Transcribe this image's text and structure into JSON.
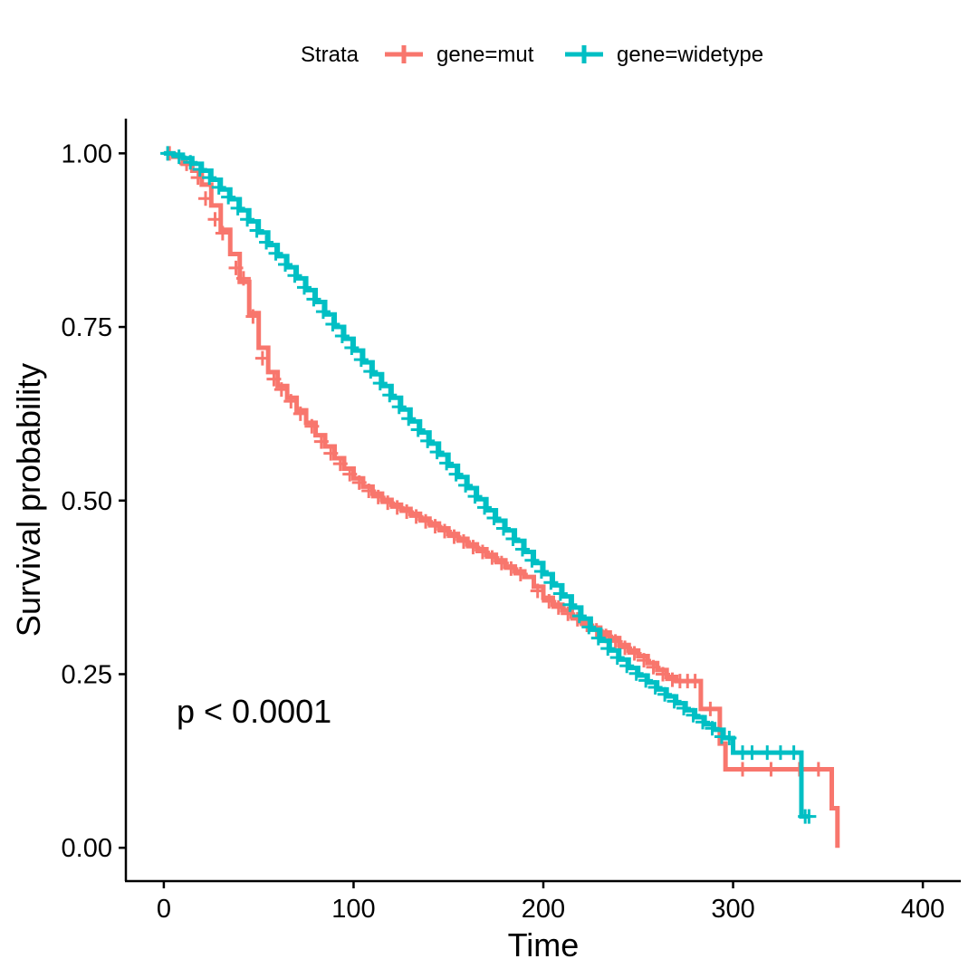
{
  "chart_data": {
    "type": "line",
    "xlabel": "Time",
    "ylabel": "Survival probability",
    "xlim": [
      -20,
      420
    ],
    "ylim": [
      -0.048,
      1.05
    ],
    "x_ticks": [
      0,
      100,
      200,
      300,
      400
    ],
    "x_tick_labels": [
      "0",
      "100",
      "200",
      "300",
      "400"
    ],
    "y_ticks": [
      0,
      0.25,
      0.5,
      0.75,
      1.0
    ],
    "y_tick_labels": [
      "0.00",
      "0.25",
      "0.50",
      "0.75",
      "1.00"
    ],
    "grid": false,
    "legend": {
      "position": "top",
      "title": "Strata",
      "entries": [
        "gene=mut",
        "gene=widetype"
      ]
    },
    "annotation": "p < 0.0001",
    "series": [
      {
        "name": "gene=mut",
        "color": "#F8766D",
        "points": [
          [
            0,
            1.0
          ],
          [
            5,
            0.995
          ],
          [
            10,
            0.985
          ],
          [
            15,
            0.975
          ],
          [
            20,
            0.955
          ],
          [
            25,
            0.925
          ],
          [
            30,
            0.89
          ],
          [
            35,
            0.855
          ],
          [
            40,
            0.815
          ],
          [
            45,
            0.77
          ],
          [
            50,
            0.72
          ],
          [
            55,
            0.685
          ],
          [
            60,
            0.665
          ],
          [
            65,
            0.648
          ],
          [
            70,
            0.63
          ],
          [
            75,
            0.612
          ],
          [
            80,
            0.594
          ],
          [
            85,
            0.578
          ],
          [
            90,
            0.561
          ],
          [
            95,
            0.546
          ],
          [
            100,
            0.532
          ],
          [
            105,
            0.52
          ],
          [
            110,
            0.51
          ],
          [
            115,
            0.501
          ],
          [
            120,
            0.494
          ],
          [
            125,
            0.488
          ],
          [
            130,
            0.481
          ],
          [
            135,
            0.474
          ],
          [
            140,
            0.467
          ],
          [
            145,
            0.46
          ],
          [
            150,
            0.452
          ],
          [
            155,
            0.445
          ],
          [
            160,
            0.437
          ],
          [
            165,
            0.43
          ],
          [
            170,
            0.422
          ],
          [
            175,
            0.414
          ],
          [
            180,
            0.405
          ],
          [
            185,
            0.398
          ],
          [
            190,
            0.39
          ],
          [
            195,
            0.376
          ],
          [
            200,
            0.36
          ],
          [
            205,
            0.35
          ],
          [
            210,
            0.342
          ],
          [
            215,
            0.333
          ],
          [
            220,
            0.325
          ],
          [
            225,
            0.317
          ],
          [
            230,
            0.31
          ],
          [
            235,
            0.302
          ],
          [
            240,
            0.292
          ],
          [
            245,
            0.284
          ],
          [
            250,
            0.276
          ],
          [
            255,
            0.266
          ],
          [
            260,
            0.256
          ],
          [
            265,
            0.246
          ],
          [
            270,
            0.24
          ],
          [
            275,
            0.24
          ],
          [
            280,
            0.24
          ],
          [
            283,
            0.2
          ],
          [
            290,
            0.2
          ],
          [
            293,
            0.15
          ],
          [
            296,
            0.113
          ],
          [
            350,
            0.113
          ],
          [
            352,
            0.057
          ],
          [
            355,
            0.057
          ],
          [
            355,
            0.0
          ]
        ],
        "censored": [
          [
            3,
            1.0
          ],
          [
            12,
            0.985
          ],
          [
            18,
            0.965
          ],
          [
            22,
            0.935
          ],
          [
            27,
            0.905
          ],
          [
            31,
            0.885
          ],
          [
            38,
            0.835
          ],
          [
            42,
            0.82
          ],
          [
            47,
            0.765
          ],
          [
            52,
            0.705
          ],
          [
            58,
            0.675
          ],
          [
            62,
            0.66
          ],
          [
            67,
            0.643
          ],
          [
            72,
            0.625
          ],
          [
            78,
            0.607
          ],
          [
            83,
            0.585
          ],
          [
            88,
            0.568
          ],
          [
            93,
            0.553
          ],
          [
            98,
            0.538
          ],
          [
            103,
            0.526
          ],
          [
            108,
            0.514
          ],
          [
            113,
            0.505
          ],
          [
            118,
            0.497
          ],
          [
            123,
            0.49
          ],
          [
            128,
            0.484
          ],
          [
            133,
            0.477
          ],
          [
            138,
            0.47
          ],
          [
            143,
            0.463
          ],
          [
            148,
            0.456
          ],
          [
            153,
            0.448
          ],
          [
            158,
            0.441
          ],
          [
            163,
            0.433
          ],
          [
            168,
            0.426
          ],
          [
            173,
            0.418
          ],
          [
            178,
            0.41
          ],
          [
            183,
            0.402
          ],
          [
            188,
            0.394
          ],
          [
            197,
            0.37
          ],
          [
            203,
            0.355
          ],
          [
            208,
            0.346
          ],
          [
            213,
            0.337
          ],
          [
            218,
            0.329
          ],
          [
            223,
            0.321
          ],
          [
            228,
            0.313
          ],
          [
            233,
            0.305
          ],
          [
            238,
            0.297
          ],
          [
            243,
            0.288
          ],
          [
            248,
            0.28
          ],
          [
            253,
            0.27
          ],
          [
            258,
            0.26
          ],
          [
            263,
            0.25
          ],
          [
            268,
            0.242
          ],
          [
            272,
            0.24
          ],
          [
            276,
            0.24
          ],
          [
            280,
            0.24
          ],
          [
            288,
            0.2
          ],
          [
            305,
            0.113
          ],
          [
            320,
            0.113
          ],
          [
            335,
            0.113
          ],
          [
            345,
            0.113
          ]
        ]
      },
      {
        "name": "gene=widetype",
        "color": "#00BFC4",
        "points": [
          [
            0,
            1.0
          ],
          [
            5,
            0.998
          ],
          [
            10,
            0.993
          ],
          [
            15,
            0.985
          ],
          [
            20,
            0.975
          ],
          [
            25,
            0.962
          ],
          [
            30,
            0.948
          ],
          [
            35,
            0.934
          ],
          [
            40,
            0.918
          ],
          [
            45,
            0.902
          ],
          [
            50,
            0.886
          ],
          [
            55,
            0.868
          ],
          [
            60,
            0.852
          ],
          [
            65,
            0.836
          ],
          [
            70,
            0.82
          ],
          [
            75,
            0.803
          ],
          [
            80,
            0.786
          ],
          [
            85,
            0.768
          ],
          [
            90,
            0.75
          ],
          [
            95,
            0.733
          ],
          [
            100,
            0.716
          ],
          [
            105,
            0.699
          ],
          [
            110,
            0.682
          ],
          [
            115,
            0.665
          ],
          [
            120,
            0.648
          ],
          [
            125,
            0.631
          ],
          [
            130,
            0.614
          ],
          [
            135,
            0.598
          ],
          [
            140,
            0.582
          ],
          [
            145,
            0.566
          ],
          [
            150,
            0.55
          ],
          [
            155,
            0.534
          ],
          [
            160,
            0.518
          ],
          [
            165,
            0.502
          ],
          [
            170,
            0.486
          ],
          [
            175,
            0.471
          ],
          [
            180,
            0.457
          ],
          [
            185,
            0.442
          ],
          [
            190,
            0.426
          ],
          [
            195,
            0.41
          ],
          [
            200,
            0.394
          ],
          [
            205,
            0.378
          ],
          [
            210,
            0.362
          ],
          [
            215,
            0.346
          ],
          [
            220,
            0.33
          ],
          [
            225,
            0.314
          ],
          [
            230,
            0.298
          ],
          [
            235,
            0.284
          ],
          [
            240,
            0.271
          ],
          [
            245,
            0.259
          ],
          [
            250,
            0.248
          ],
          [
            255,
            0.238
          ],
          [
            260,
            0.228
          ],
          [
            265,
            0.218
          ],
          [
            270,
            0.208
          ],
          [
            275,
            0.198
          ],
          [
            280,
            0.188
          ],
          [
            285,
            0.178
          ],
          [
            290,
            0.17
          ],
          [
            295,
            0.158
          ],
          [
            300,
            0.137
          ],
          [
            335,
            0.137
          ],
          [
            336,
            0.045
          ],
          [
            340,
            0.045
          ]
        ],
        "censored": [
          [
            2,
            1.0
          ],
          [
            8,
            0.995
          ],
          [
            14,
            0.987
          ],
          [
            19,
            0.977
          ],
          [
            24,
            0.965
          ],
          [
            29,
            0.951
          ],
          [
            34,
            0.937
          ],
          [
            39,
            0.921
          ],
          [
            44,
            0.905
          ],
          [
            49,
            0.889
          ],
          [
            54,
            0.872
          ],
          [
            59,
            0.856
          ],
          [
            64,
            0.84
          ],
          [
            69,
            0.824
          ],
          [
            74,
            0.807
          ],
          [
            79,
            0.79
          ],
          [
            84,
            0.772
          ],
          [
            89,
            0.754
          ],
          [
            94,
            0.737
          ],
          [
            99,
            0.72
          ],
          [
            104,
            0.703
          ],
          [
            109,
            0.686
          ],
          [
            114,
            0.669
          ],
          [
            119,
            0.652
          ],
          [
            124,
            0.635
          ],
          [
            129,
            0.618
          ],
          [
            134,
            0.602
          ],
          [
            139,
            0.586
          ],
          [
            144,
            0.57
          ],
          [
            149,
            0.554
          ],
          [
            154,
            0.538
          ],
          [
            159,
            0.522
          ],
          [
            164,
            0.506
          ],
          [
            169,
            0.49
          ],
          [
            174,
            0.475
          ],
          [
            179,
            0.46
          ],
          [
            184,
            0.445
          ],
          [
            189,
            0.43
          ],
          [
            194,
            0.414
          ],
          [
            199,
            0.398
          ],
          [
            204,
            0.382
          ],
          [
            209,
            0.366
          ],
          [
            214,
            0.35
          ],
          [
            219,
            0.334
          ],
          [
            224,
            0.318
          ],
          [
            229,
            0.302
          ],
          [
            234,
            0.287
          ],
          [
            239,
            0.274
          ],
          [
            244,
            0.262
          ],
          [
            249,
            0.251
          ],
          [
            254,
            0.241
          ],
          [
            259,
            0.231
          ],
          [
            264,
            0.221
          ],
          [
            269,
            0.211
          ],
          [
            274,
            0.201
          ],
          [
            279,
            0.191
          ],
          [
            284,
            0.181
          ],
          [
            289,
            0.172
          ],
          [
            294,
            0.16
          ],
          [
            298,
            0.158
          ],
          [
            305,
            0.137
          ],
          [
            310,
            0.137
          ],
          [
            318,
            0.137
          ],
          [
            325,
            0.137
          ],
          [
            332,
            0.137
          ],
          [
            338,
            0.045
          ],
          [
            340,
            0.045
          ]
        ]
      }
    ]
  }
}
